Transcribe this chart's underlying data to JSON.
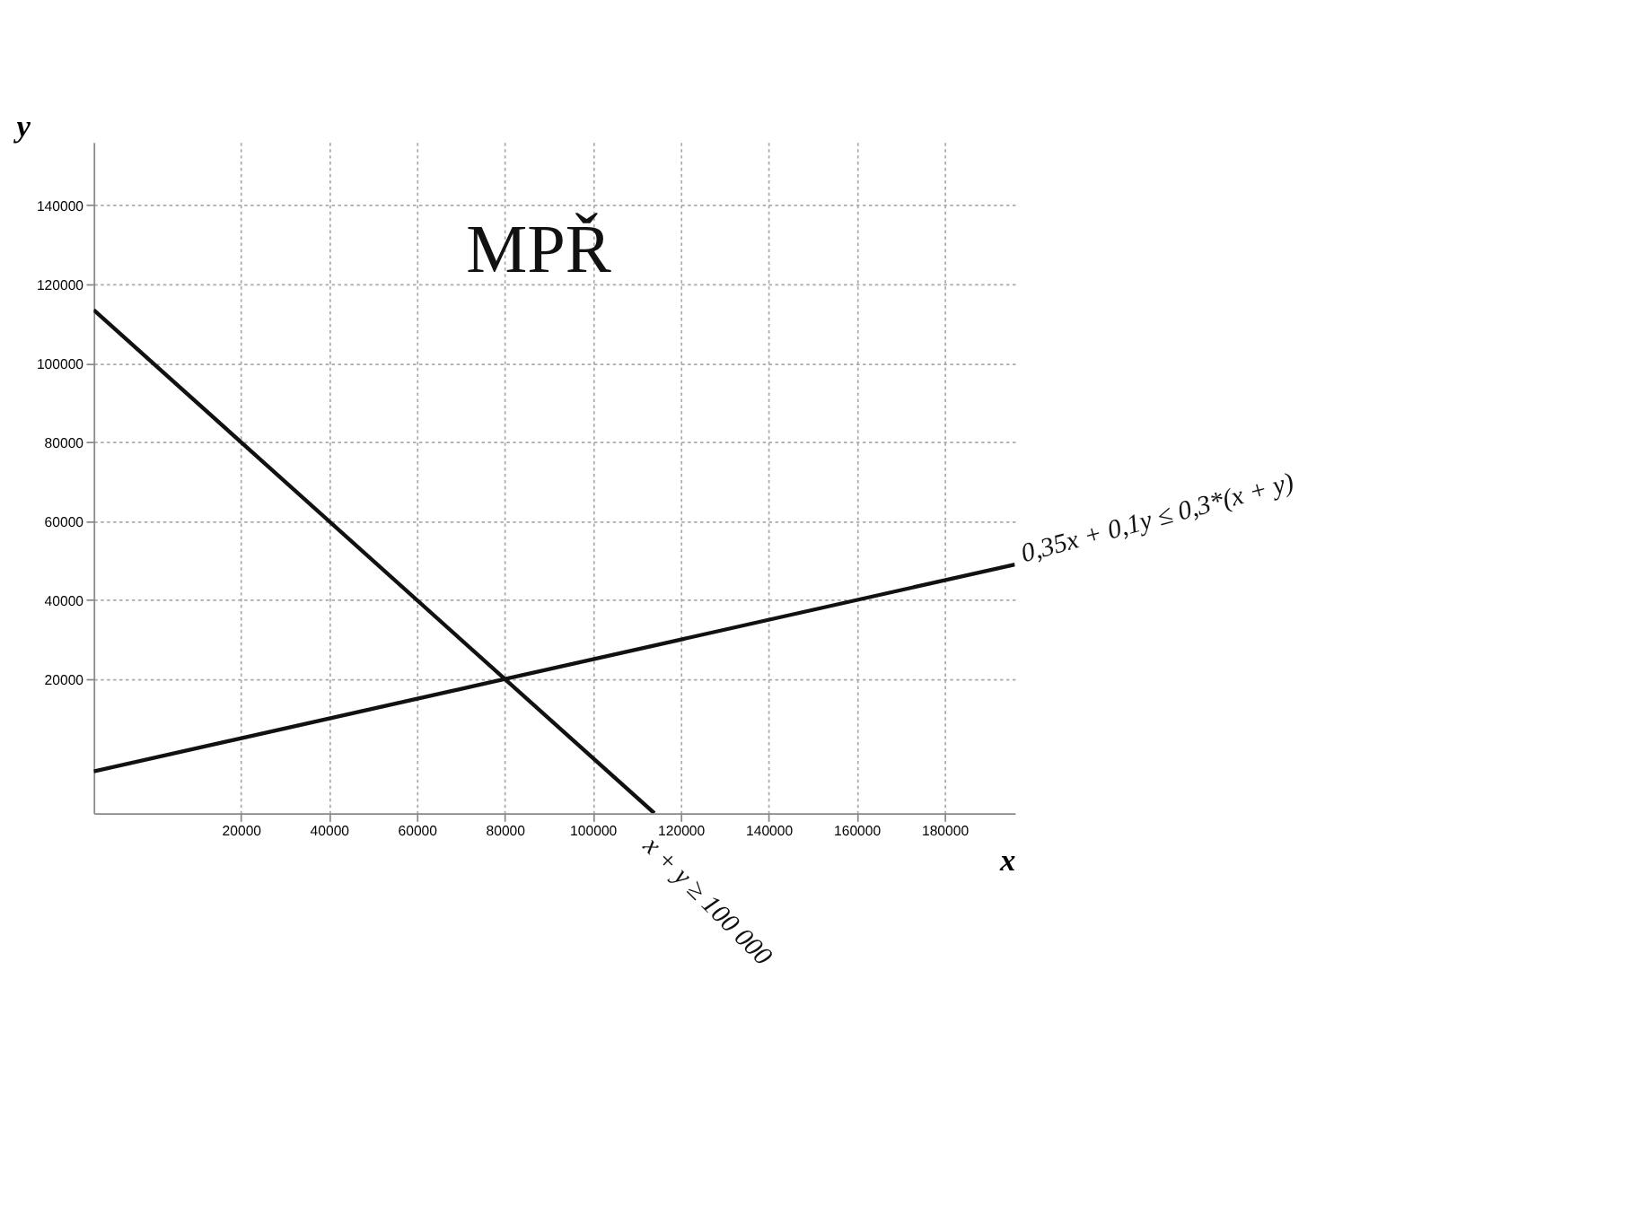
{
  "chart_data": {
    "type": "line",
    "xlabel": "x",
    "ylabel": "y",
    "xlim": [
      -13500,
      196000
    ],
    "ylim": [
      -14000,
      156000
    ],
    "xticks": [
      20000,
      40000,
      60000,
      80000,
      100000,
      120000,
      140000,
      160000,
      180000
    ],
    "yticks": [
      20000,
      40000,
      60000,
      80000,
      100000,
      120000,
      140000
    ],
    "grid": true,
    "marker": "none",
    "line_style": "solid",
    "series": [
      {
        "color": "#111111",
        "x": [
          -13500,
          114000
        ],
        "values": [
          113500,
          -14000
        ]
      },
      {
        "color": "#111111",
        "x": [
          -13500,
          196000
        ],
        "values": [
          -3400,
          49000
        ]
      }
    ],
    "annotations": [
      "MPŘ",
      {
        "text": "0,35x + 0,1y ≤ 0,3*(x + y)",
        "x": 196000,
        "y": 49000
      },
      {
        "text": "x + y ≥ 100 000",
        "x": 114000,
        "y": -14000
      }
    ]
  }
}
